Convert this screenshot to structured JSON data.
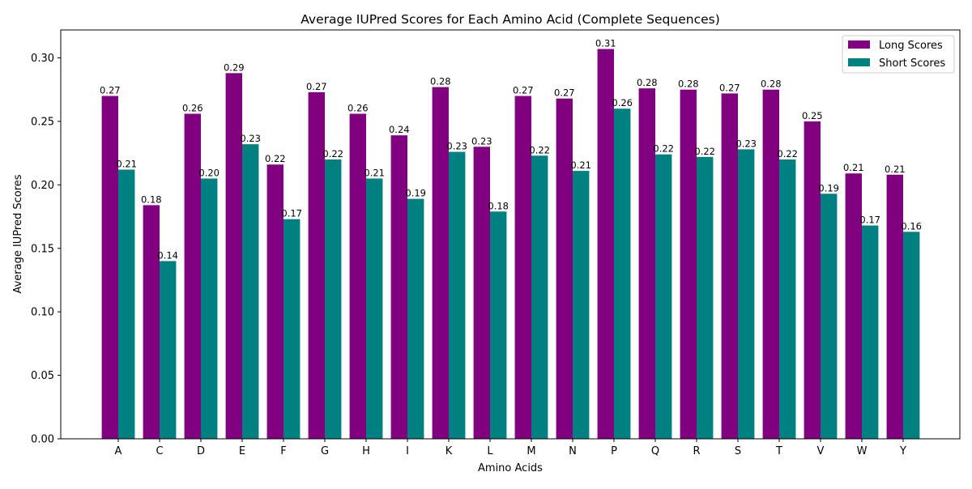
{
  "chart_data": {
    "type": "bar",
    "title": "Average IUPred Scores for Each Amino Acid (Complete Sequences)",
    "xlabel": "Amino Acids",
    "ylabel": "Average IUPred Scores",
    "categories": [
      "A",
      "C",
      "D",
      "E",
      "F",
      "G",
      "H",
      "I",
      "K",
      "L",
      "M",
      "N",
      "P",
      "Q",
      "R",
      "S",
      "T",
      "V",
      "W",
      "Y"
    ],
    "series": [
      {
        "name": "Long Scores",
        "color": "#800080",
        "values": [
          0.27,
          0.184,
          0.256,
          0.288,
          0.216,
          0.273,
          0.256,
          0.239,
          0.277,
          0.23,
          0.27,
          0.268,
          0.307,
          0.276,
          0.275,
          0.272,
          0.275,
          0.25,
          0.209,
          0.208
        ],
        "labels": [
          "0.27",
          "0.18",
          "0.26",
          "0.29",
          "0.22",
          "0.27",
          "0.26",
          "0.24",
          "0.28",
          "0.23",
          "0.27",
          "0.27",
          "0.31",
          "0.28",
          "0.28",
          "0.27",
          "0.28",
          "0.25",
          "0.21",
          "0.21"
        ]
      },
      {
        "name": "Short Scores",
        "color": "#008080",
        "values": [
          0.212,
          0.14,
          0.205,
          0.232,
          0.173,
          0.22,
          0.205,
          0.189,
          0.226,
          0.179,
          0.223,
          0.211,
          0.26,
          0.224,
          0.222,
          0.228,
          0.22,
          0.193,
          0.168,
          0.163
        ],
        "labels": [
          "0.21",
          "0.14",
          "0.20",
          "0.23",
          "0.17",
          "0.22",
          "0.21",
          "0.19",
          "0.23",
          "0.18",
          "0.22",
          "0.21",
          "0.26",
          "0.22",
          "0.22",
          "0.23",
          "0.22",
          "0.19",
          "0.17",
          "0.16"
        ]
      }
    ],
    "ylim": [
      0,
      0.322
    ],
    "yticks": [
      "0.00",
      "0.05",
      "0.10",
      "0.15",
      "0.20",
      "0.25",
      "0.30"
    ],
    "grid": false,
    "legend": "top-right"
  }
}
